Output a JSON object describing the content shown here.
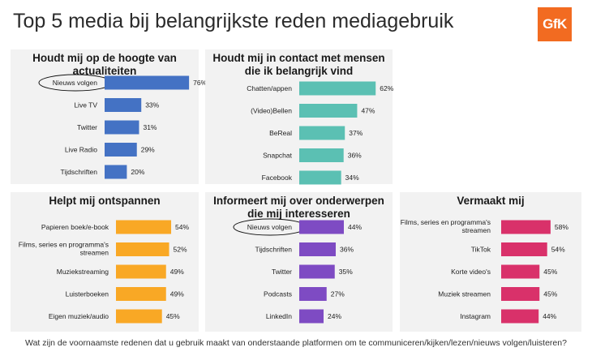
{
  "title": "Top 5 media bij belangrijkste reden mediagebruik",
  "logo_text": "GfK",
  "footnote": "Wat zijn de voornaamste redenen dat u gebruik maakt van onderstaande platformen om te communiceren/kijken/lezen/nieuws volgen/luisteren?",
  "chart_data": [
    {
      "type": "bar",
      "orientation": "horizontal",
      "title": "Houdt mij op de hoogte van\nactualiteiten",
      "color": "#4472c4",
      "categories": [
        "Nieuws volgen",
        "Live TV",
        "Twitter",
        "Live Radio",
        "Tijdschriften"
      ],
      "values": [
        76,
        33,
        31,
        29,
        20
      ],
      "value_suffix": "%",
      "highlight": "Nieuws volgen"
    },
    {
      "type": "bar",
      "orientation": "horizontal",
      "title": "Houdt mij in contact met mensen\ndie ik belangrijk vind",
      "color": "#5bc0b3",
      "categories": [
        "Chatten/appen",
        "(Video)Bellen",
        "BeReal",
        "Snapchat",
        "Facebook"
      ],
      "values": [
        62,
        47,
        37,
        36,
        34
      ],
      "value_suffix": "%"
    },
    {
      "type": "bar",
      "orientation": "horizontal",
      "title": "Helpt mij ontspannen",
      "color": "#f9a825",
      "categories": [
        "Papieren boek/e-book",
        "Films, series en programma's\nstreamen",
        "Muziekstreaming",
        "Luisterboeken",
        "Eigen muziek/audio"
      ],
      "values": [
        54,
        52,
        49,
        49,
        45
      ],
      "value_suffix": "%"
    },
    {
      "type": "bar",
      "orientation": "horizontal",
      "title": "Informeert mij over onderwerpen\ndie mij interesseren",
      "color": "#7e4bc3",
      "categories": [
        "Nieuws volgen",
        "Tijdschriften",
        "Twitter",
        "Podcasts",
        "LinkedIn"
      ],
      "values": [
        44,
        36,
        35,
        27,
        24
      ],
      "value_suffix": "%",
      "highlight": "Nieuws volgen"
    },
    {
      "type": "bar",
      "orientation": "horizontal",
      "title": "Vermaakt mij",
      "color": "#d9316a",
      "categories": [
        "Films, series en programma's\nstreamen",
        "TikTok",
        "Korte video's",
        "Muziek streamen",
        "Instagram"
      ],
      "values": [
        58,
        54,
        45,
        45,
        44
      ],
      "value_suffix": "%"
    }
  ]
}
